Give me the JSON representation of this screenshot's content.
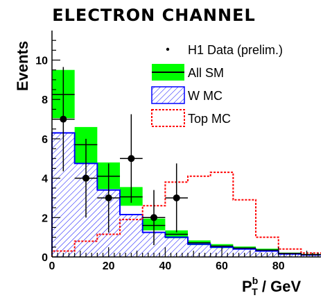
{
  "chart_data": {
    "type": "histogram",
    "title": "ELECTRON CHANNEL",
    "xlabel_main": "P",
    "xlabel_sup": "b",
    "xlabel_sub": "T",
    "xlabel_rest": " / GeV",
    "ylabel": "Events",
    "xlim": [
      0,
      95
    ],
    "ylim": [
      0,
      11.5
    ],
    "xticks": [
      0,
      20,
      40,
      60,
      80
    ],
    "xtick_labels": [
      "0",
      "20",
      "40",
      "60",
      "80"
    ],
    "yticks": [
      0,
      2,
      4,
      6,
      8,
      10
    ],
    "ytick_labels": [
      "0",
      "2",
      "4",
      "6",
      "8",
      "10"
    ],
    "legend_position": "top-right",
    "legend": [
      {
        "key": "data",
        "label": "H1 Data (prelim.)"
      },
      {
        "key": "allsm",
        "label": "All SM"
      },
      {
        "key": "wmc",
        "label": "W MC"
      },
      {
        "key": "topmc",
        "label": "Top MC"
      }
    ],
    "bin_edges": [
      0,
      8,
      16,
      24,
      32,
      40,
      48,
      56,
      64,
      72,
      80,
      88,
      96
    ],
    "all_sm": {
      "name": "All SM",
      "values": [
        8.25,
        5.7,
        4.1,
        3.05,
        1.6,
        1.15,
        0.72,
        0.55,
        0.45,
        0.35,
        0.18,
        0.12
      ],
      "band_low": [
        7.05,
        4.75,
        3.45,
        2.6,
        1.35,
        0.95,
        0.6,
        0.45,
        0.37,
        0.28,
        0.14,
        0.09
      ],
      "band_high": [
        9.5,
        6.6,
        4.8,
        3.55,
        1.95,
        1.35,
        0.84,
        0.65,
        0.53,
        0.42,
        0.22,
        0.15
      ],
      "band_color": "#00ff00",
      "line_color": "#000000"
    },
    "w_mc": {
      "name": "W MC",
      "values": [
        6.3,
        4.75,
        3.4,
        2.15,
        1.25,
        1.0,
        0.65,
        0.5,
        0.4,
        0.3,
        0.15,
        0.1
      ],
      "color": "#0000ff"
    },
    "top_mc": {
      "name": "Top MC",
      "values": [
        0.3,
        0.8,
        1.15,
        1.9,
        2.6,
        3.8,
        4.1,
        4.3,
        2.9,
        1.0,
        0.4,
        0.2
      ],
      "color": "#ff0000"
    },
    "data_points": {
      "name": "H1 Data (prelim.)",
      "x": [
        4,
        12,
        20,
        28,
        36,
        44
      ],
      "y": [
        7,
        4,
        3,
        5,
        2,
        3
      ],
      "x_err": 4,
      "y_err_low": [
        2.65,
        2.0,
        1.75,
        2.25,
        1.4,
        1.75
      ],
      "y_err_high": [
        2.65,
        2.0,
        1.75,
        2.25,
        1.4,
        1.75
      ]
    }
  }
}
